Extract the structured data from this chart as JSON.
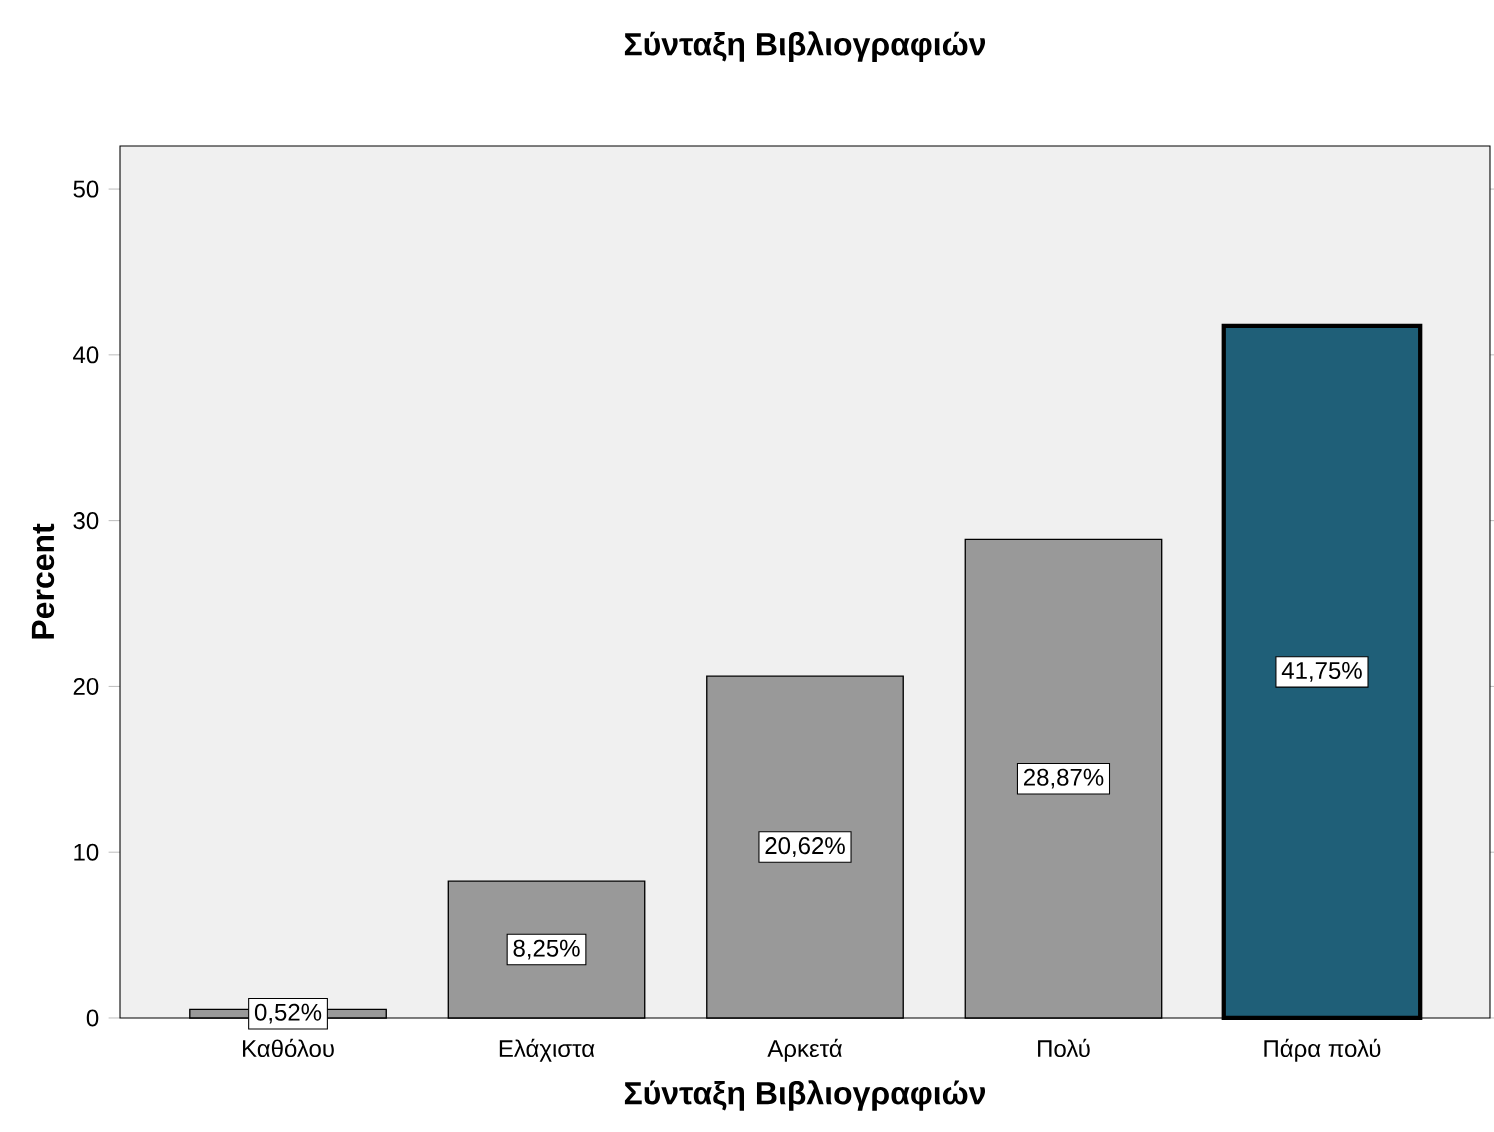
{
  "chart_data": {
    "type": "bar",
    "title": "Σύνταξη Βιβλιογραφιών",
    "xlabel": "Σύνταξη Βιβλιογραφιών",
    "ylabel": "Percent",
    "categories": [
      "Καθόλου",
      "Ελάχιστα",
      "Αρκετά",
      "Πολύ",
      "Πάρα πολύ"
    ],
    "values": [
      0.52,
      8.25,
      20.62,
      28.87,
      41.75
    ],
    "value_labels": [
      "0,52%",
      "8,25%",
      "20,62%",
      "28,87%",
      "41,75%"
    ],
    "colors": [
      "#999999",
      "#999999",
      "#999999",
      "#999999",
      "#1f5f78"
    ],
    "ylim": [
      0,
      52.6
    ],
    "yticks": [
      0,
      10,
      20,
      30,
      40,
      50
    ],
    "grid": false
  }
}
